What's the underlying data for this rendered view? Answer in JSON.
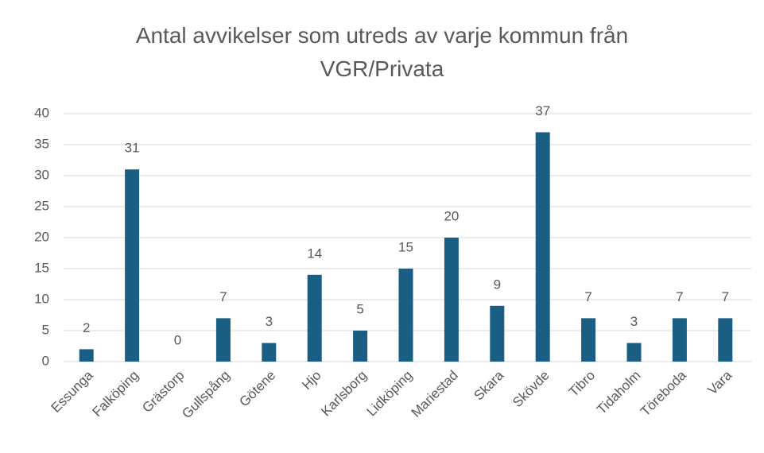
{
  "chart_data": {
    "type": "bar",
    "title": "Antal avvikelser som utreds av varje kommun från VGR/Privata",
    "categories": [
      "Essunga",
      "Falköping",
      "Grästorp",
      "Gullspång",
      "Götene",
      "Hjo",
      "Karlsborg",
      "Lidköping",
      "Mariestad",
      "Skara",
      "Skövde",
      "Tibro",
      "Tidaholm",
      "Töreboda",
      "Vara"
    ],
    "values": [
      2,
      31,
      0,
      7,
      3,
      14,
      5,
      15,
      20,
      9,
      37,
      7,
      3,
      7,
      7
    ],
    "color": "#1b5e84",
    "ylim": [
      0,
      40
    ],
    "yticks": [
      0,
      5,
      10,
      15,
      20,
      25,
      30,
      35,
      40
    ],
    "grid": true
  }
}
